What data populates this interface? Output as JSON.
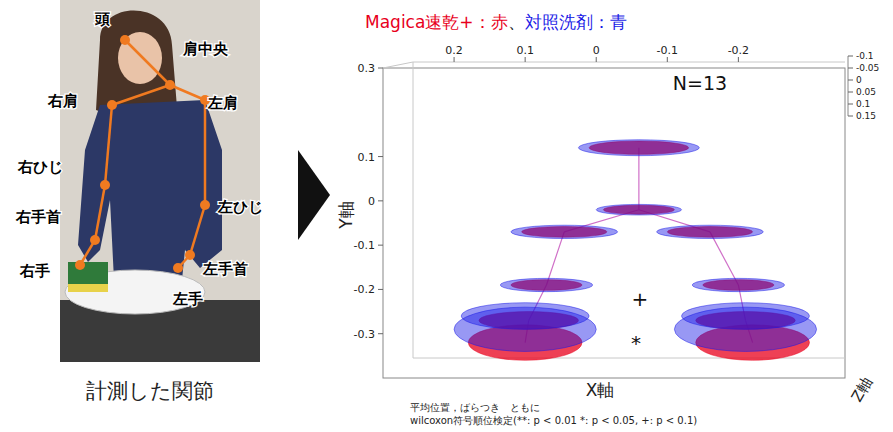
{
  "chart_data": {
    "type": "ellipsoid",
    "xlabel": "X軸",
    "ylabel": "Y軸",
    "zlabel": "Z軸",
    "caption": "計測した関節",
    "categories": [
      "頭",
      "肩中央",
      "右肩",
      "左肩",
      "右ひじ",
      "左ひじ",
      "右手首",
      "左手首",
      "右手",
      "左手"
    ],
    "legend_separator": "、",
    "series": [
      {
        "name": "Magica速乾+：赤",
        "color": "#e8001c",
        "x": [
          -0.06,
          -0.06,
          0.045,
          -0.16,
          0.07,
          -0.2,
          0.095,
          -0.21,
          0.1,
          -0.22
        ],
        "y": [
          0.12,
          -0.02,
          -0.07,
          -0.07,
          -0.19,
          -0.19,
          -0.27,
          -0.27,
          -0.32,
          -0.32
        ],
        "spread_x": [
          0.07,
          0.05,
          0.06,
          0.06,
          0.05,
          0.05,
          0.07,
          0.07,
          0.08,
          0.08
        ],
        "spread_y": [
          0.015,
          0.01,
          0.012,
          0.012,
          0.012,
          0.012,
          0.02,
          0.02,
          0.04,
          0.04
        ]
      },
      {
        "name": "対照洗剤：青",
        "color": "#1a1ae6",
        "x": [
          -0.06,
          -0.06,
          0.045,
          -0.16,
          0.07,
          -0.2,
          0.1,
          -0.21,
          0.1,
          -0.21
        ],
        "y": [
          0.12,
          -0.02,
          -0.07,
          -0.07,
          -0.19,
          -0.19,
          -0.26,
          -0.26,
          -0.29,
          -0.29
        ],
        "spread_x": [
          0.085,
          0.06,
          0.075,
          0.075,
          0.065,
          0.065,
          0.09,
          0.09,
          0.1,
          0.1
        ],
        "spread_y": [
          0.018,
          0.012,
          0.015,
          0.015,
          0.015,
          0.015,
          0.03,
          0.03,
          0.05,
          0.05
        ]
      }
    ],
    "xlim": [
      0.3,
      -0.35
    ],
    "xticks": [
      0.2,
      0.1,
      0,
      -0.1,
      -0.2
    ],
    "ylim": [
      -0.4,
      0.3
    ],
    "yticks": [
      0.3,
      0.1,
      0,
      -0.1,
      -0.2,
      -0.3
    ],
    "zlim": [
      -0.1,
      0.15
    ],
    "zticks": [
      -0.1,
      -0.05,
      0,
      0.05,
      0.1,
      0.15
    ],
    "annotations": [
      "N=13",
      "+",
      "*"
    ],
    "footnote": [
      "平均位置，ばらつき　ともに",
      "wilcoxon符号順位検定(**: p < 0.01 *: p < 0.05, +: p < 0.1)"
    ],
    "grid": false
  }
}
